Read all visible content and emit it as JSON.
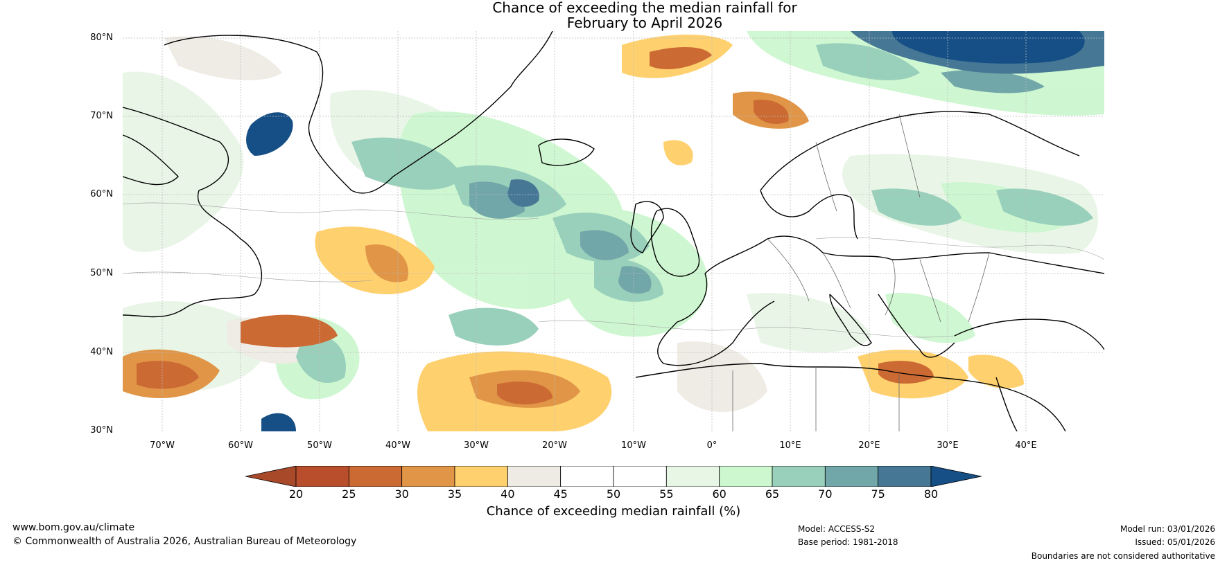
{
  "title": {
    "line1": "Chance of exceeding the median rainfall for",
    "line2": "February to April 2026"
  },
  "map": {
    "latitude_labels": [
      "80°N",
      "70°N",
      "60°N",
      "50°N",
      "40°N",
      "30°N"
    ],
    "longitude_labels": [
      "70°W",
      "60°W",
      "50°W",
      "40°W",
      "30°W",
      "20°W",
      "10°W",
      "0°",
      "10°E",
      "20°E",
      "30°E",
      "40°E"
    ]
  },
  "colorbar": {
    "ticks": [
      "20",
      "25",
      "30",
      "35",
      "40",
      "45",
      "50",
      "55",
      "60",
      "65",
      "70",
      "75",
      "80"
    ],
    "colors": [
      "#a8492a",
      "#b94e2c",
      "#cc6a34",
      "#e09547",
      "#ffd06e",
      "#eeebe4",
      "#ffffff",
      "#ffffff",
      "#e8f6e6",
      "#ccf7cf",
      "#99d0bb",
      "#71a7a9",
      "#467896",
      "#164f85"
    ],
    "label": "Chance of exceeding median rainfall (%)"
  },
  "footer": {
    "website": "www.bom.gov.au/climate",
    "copyright": "© Commonwealth of Australia 2026, Australian Bureau of Meteorology",
    "model": "Model: ACCESS-S2",
    "base_period": "Base period: 1981-2018",
    "model_run": "Model run: 03/01/2026",
    "issued": "Issued: 05/01/2026",
    "disclaimer": "Boundaries are not considered authoritative"
  }
}
